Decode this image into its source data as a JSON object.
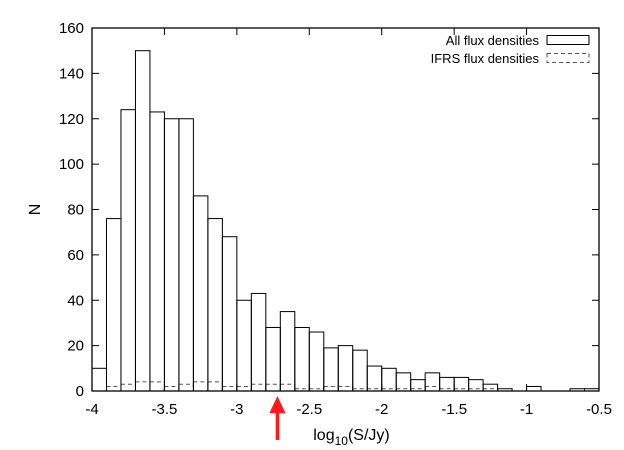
{
  "chart_data": {
    "type": "bar",
    "xlabel": {
      "prefix": "log",
      "sub": "10",
      "suffix": "(S/Jy)"
    },
    "ylabel": "N",
    "xlim": [
      -4,
      -0.5
    ],
    "ylim": [
      0,
      160
    ],
    "xticks": [
      {
        "value": -4,
        "label": "-4"
      },
      {
        "value": -3.5,
        "label": "-3.5"
      },
      {
        "value": -3,
        "label": "-3"
      },
      {
        "value": -2.5,
        "label": "-2.5"
      },
      {
        "value": -2,
        "label": "-2"
      },
      {
        "value": -1.5,
        "label": "-1.5"
      },
      {
        "value": -1,
        "label": "-1"
      },
      {
        "value": -0.5,
        "label": "-0.5"
      }
    ],
    "yticks": [
      {
        "value": 0,
        "label": "0"
      },
      {
        "value": 20,
        "label": "20"
      },
      {
        "value": 40,
        "label": "40"
      },
      {
        "value": 60,
        "label": "60"
      },
      {
        "value": 80,
        "label": "80"
      },
      {
        "value": 100,
        "label": "100"
      },
      {
        "value": 120,
        "label": "120"
      },
      {
        "value": 140,
        "label": "140"
      },
      {
        "value": 160,
        "label": "160"
      }
    ],
    "bin_width": 0.1,
    "bin_start": -4.0,
    "legend_position": "top-right",
    "grid": false,
    "series": [
      {
        "name": "All flux densities",
        "style": "solid",
        "color": "#000000",
        "values": [
          10,
          76,
          124,
          150,
          123,
          120,
          120,
          86,
          76,
          68,
          40,
          43,
          28,
          35,
          28,
          26,
          19,
          20,
          18,
          11,
          10,
          8,
          5,
          8,
          6,
          6,
          5,
          3,
          1,
          0,
          2,
          0,
          0,
          1,
          1
        ]
      },
      {
        "name": "IFRS flux densities",
        "style": "dashed",
        "color": "#555555",
        "values": [
          0,
          2,
          3,
          4,
          4,
          2,
          3,
          4,
          4,
          2,
          2,
          3,
          3,
          3,
          1,
          1,
          2,
          2,
          1,
          1,
          1,
          1,
          1,
          2,
          1,
          1,
          1,
          1,
          0,
          0,
          0,
          0,
          0,
          0,
          0
        ]
      }
    ],
    "annotations": [
      {
        "type": "arrow",
        "direction": "up",
        "x": -2.72,
        "color": "#ff1a1a"
      }
    ]
  }
}
